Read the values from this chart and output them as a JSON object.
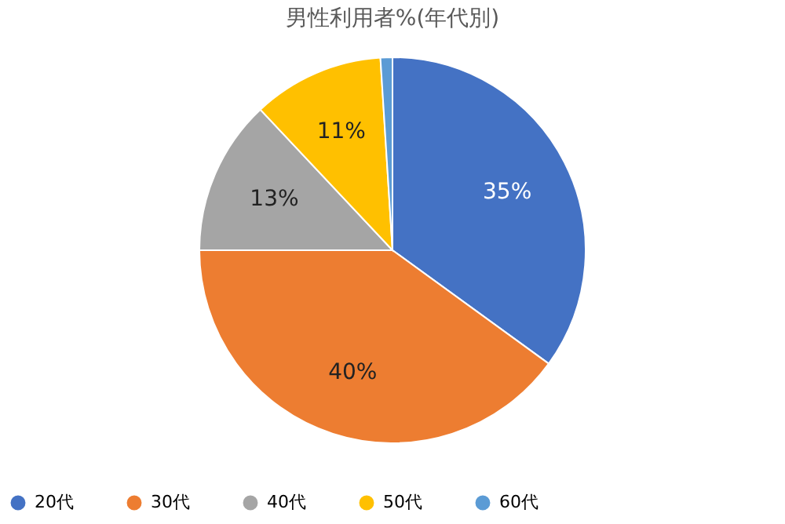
{
  "chart_data": {
    "type": "pie",
    "title": "男性利用者%(年代別)",
    "categories": [
      "20代",
      "30代",
      "40代",
      "50代",
      "60代"
    ],
    "values": [
      35,
      40,
      13,
      11,
      1
    ],
    "colors": [
      "#4472c4",
      "#ed7d31",
      "#a5a5a5",
      "#ffc000",
      "#5b9bd5"
    ],
    "value_labels": [
      "35%",
      "40%",
      "13%",
      "11%",
      null
    ],
    "legend": "bottom"
  }
}
